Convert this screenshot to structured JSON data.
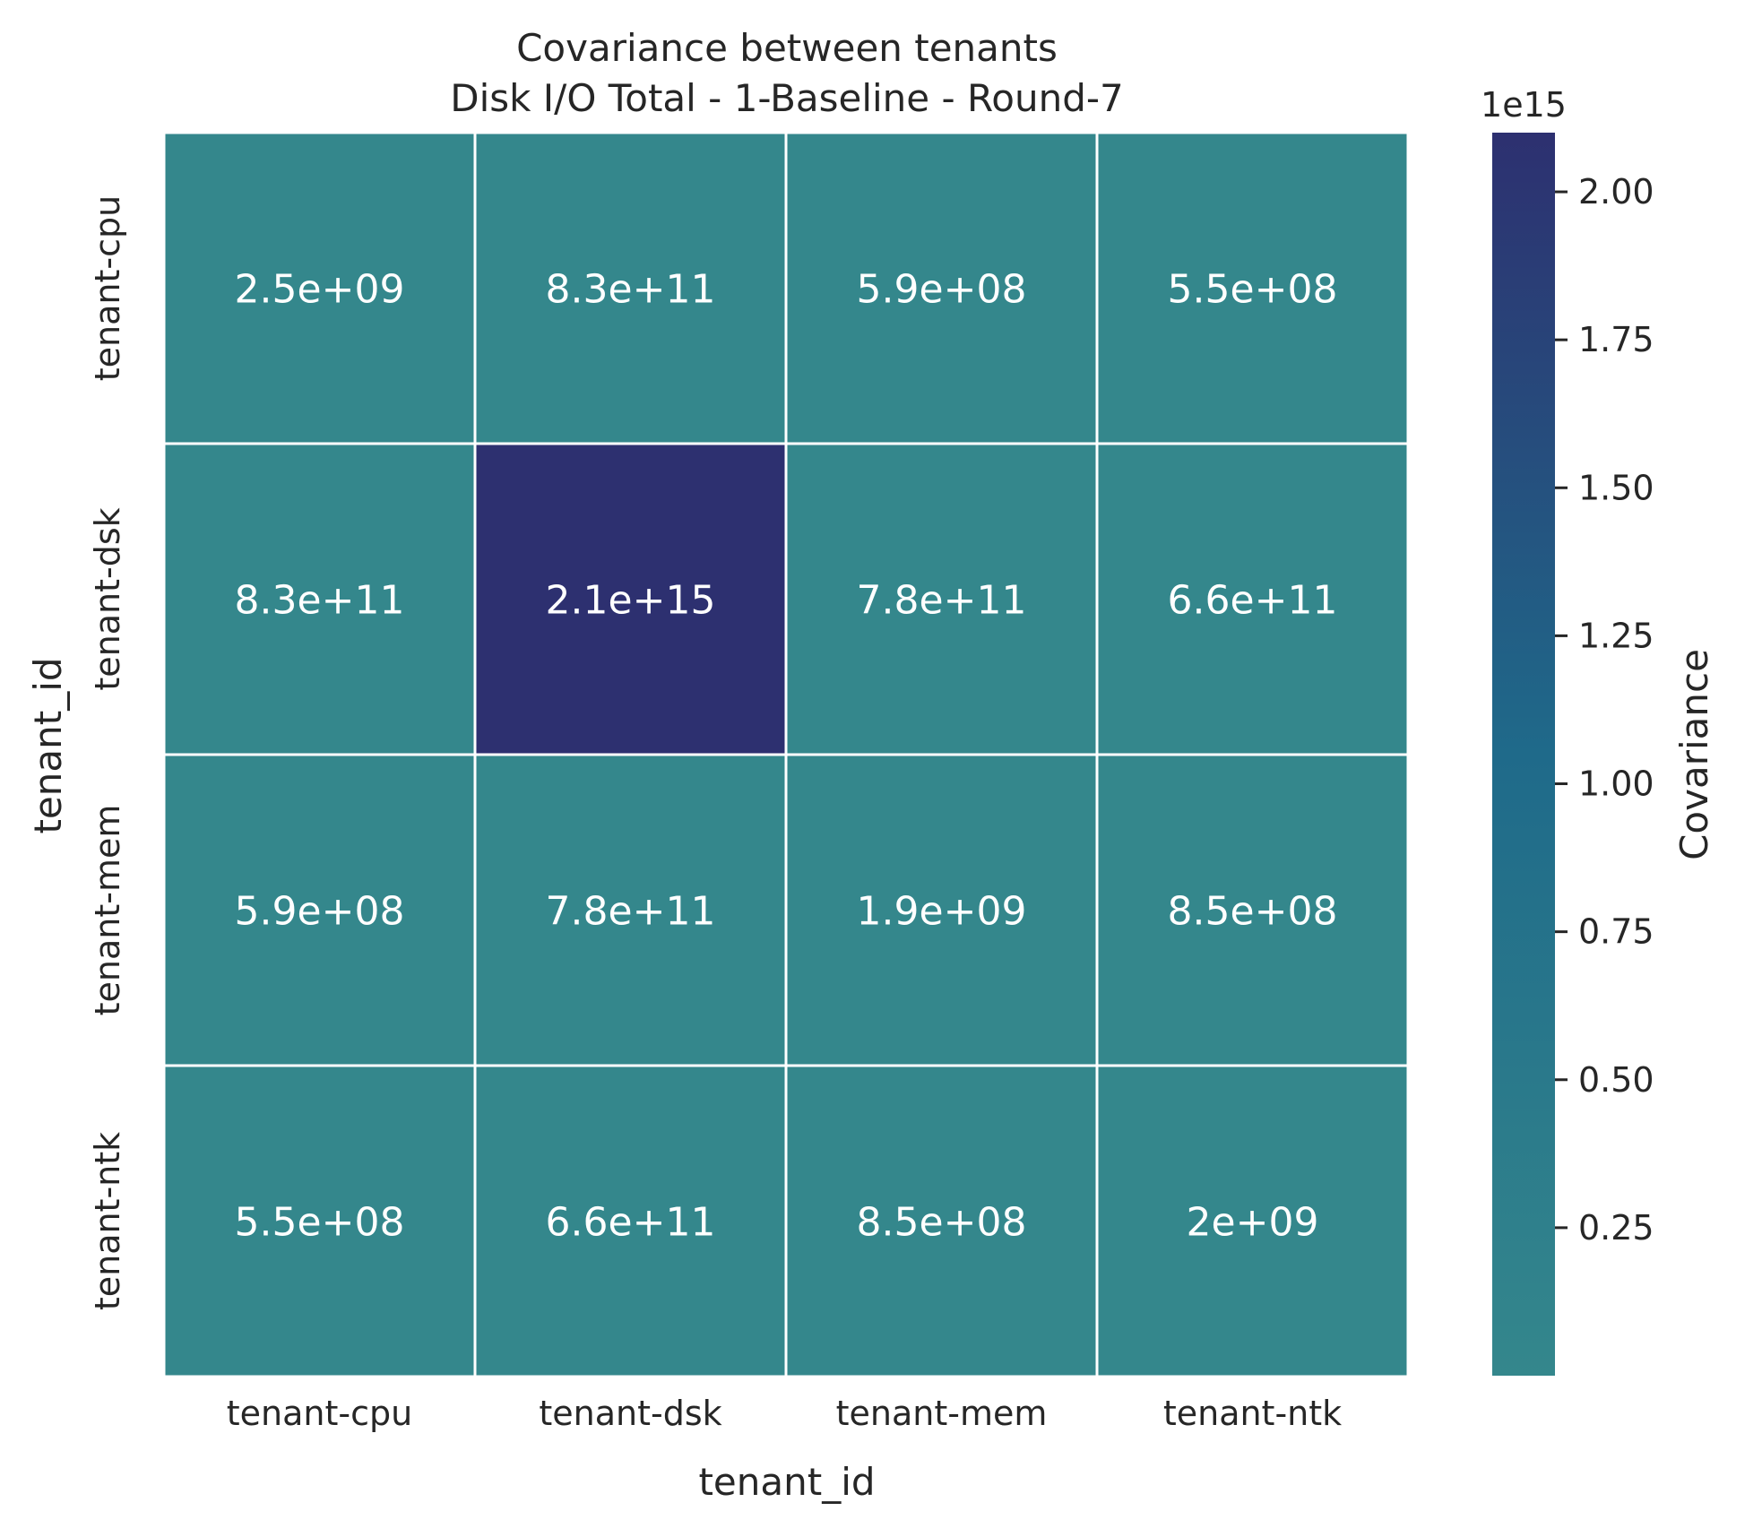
{
  "chart_data": {
    "type": "heatmap",
    "title_line1": "Covariance between tenants",
    "title_line2": "Disk I/O Total - 1-Baseline - Round-7",
    "xlabel": "tenant_id",
    "ylabel": "tenant_id",
    "x_categories": [
      "tenant-cpu",
      "tenant-dsk",
      "tenant-mem",
      "tenant-ntk"
    ],
    "y_categories": [
      "tenant-cpu",
      "tenant-dsk",
      "tenant-mem",
      "tenant-ntk"
    ],
    "values": [
      [
        2500000000.0,
        830000000000.0,
        590000000.0,
        550000000.0
      ],
      [
        830000000000.0,
        2100000000000000.0,
        780000000000.0,
        660000000000.0
      ],
      [
        590000000.0,
        780000000000.0,
        1900000000.0,
        850000000.0
      ],
      [
        550000000.0,
        660000000000.0,
        850000000.0,
        2000000000.0
      ]
    ],
    "annotations": [
      [
        "2.5e+09",
        "8.3e+11",
        "5.9e+08",
        "5.5e+08"
      ],
      [
        "8.3e+11",
        "2.1e+15",
        "7.8e+11",
        "6.6e+11"
      ],
      [
        "5.9e+08",
        "7.8e+11",
        "1.9e+09",
        "8.5e+08"
      ],
      [
        "5.5e+08",
        "6.6e+11",
        "8.5e+08",
        "2e+09"
      ]
    ],
    "colorbar": {
      "label": "Covariance",
      "offset_text": "1e15",
      "vmin": 550000000.0,
      "vmax": 2100000000000000.0,
      "scale_factor": 1000000000000000.0,
      "ticks": [
        0.25,
        0.5,
        0.75,
        1.0,
        1.25,
        1.5,
        1.75,
        2.0
      ],
      "tick_labels": [
        "0.25",
        "0.50",
        "0.75",
        "1.00",
        "1.25",
        "1.50",
        "1.75",
        "2.00"
      ],
      "color_low": "#34878c",
      "color_mid": "#1f6a8a",
      "color_high": "#2d3070"
    },
    "grid_line_color": "#ffffff"
  }
}
